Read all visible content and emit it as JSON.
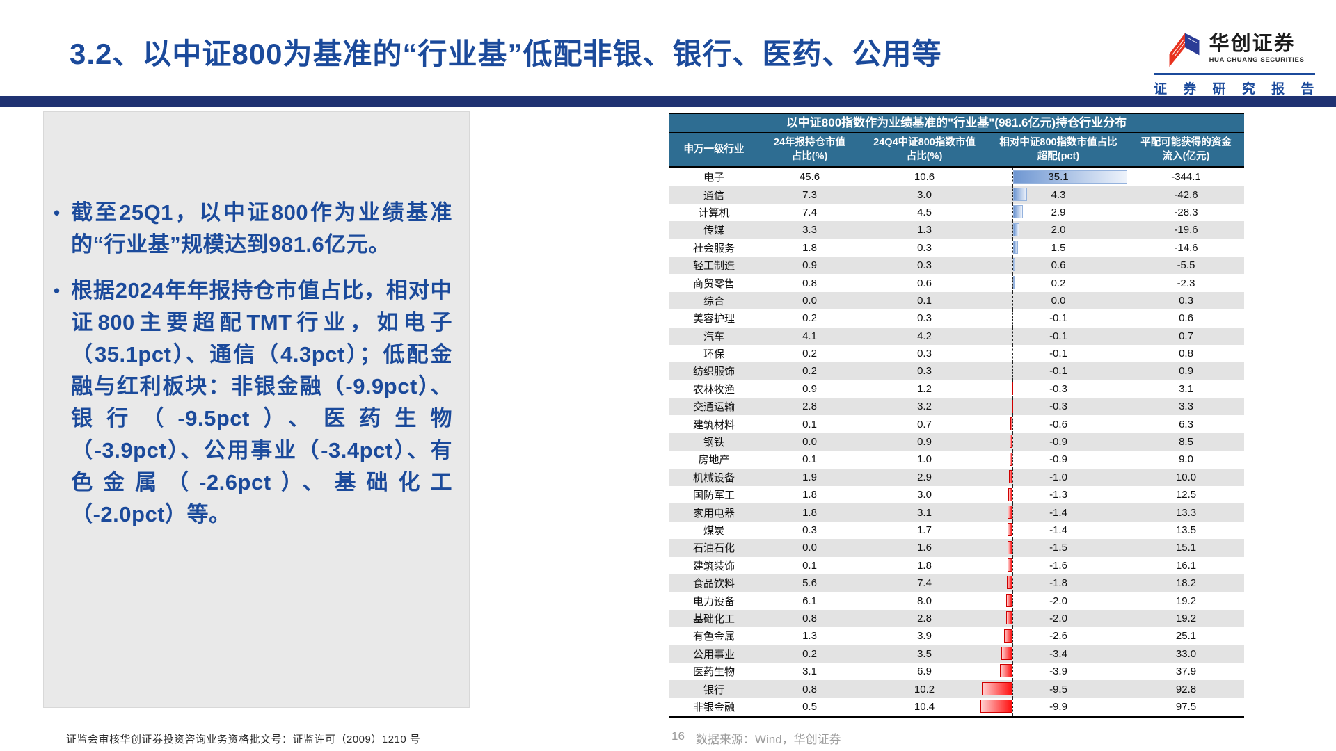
{
  "page": {
    "title": "3.2、以中证800为基准的“行业基”低配非银、银行、医药、公用等",
    "page_number": "16",
    "source_note": "数据来源：Wind，华创证券",
    "disclaimer": "证监会审核华创证券投资咨询业务资格批文号：证监许可（2009）1210 号"
  },
  "logo": {
    "name_cn": "华创证券",
    "name_en": "HUA CHUANG SECURITIES",
    "report_label": "证 券 研 究 报 告",
    "brand_red": "#e8321f",
    "brand_blue": "#2b3c96"
  },
  "notes": {
    "bullets": [
      "截至25Q1，以中证800作为业绩基准的“行业基”规模达到981.6亿元。",
      "根据2024年年报持仓市值占比，相对中证800主要超配TMT行业，如电子（35.1pct）、通信（4.3pct）；低配金融与红利板块：非银金融（-9.9pct）、银行（-9.5pct）、医药生物（-3.9pct）、公用事业（-3.4pct）、有色金属（-2.6pct）、基础化工（-2.0pct）等。"
    ]
  },
  "chart_data": {
    "type": "table",
    "title": "以中证800指数作为业绩基准的\"行业基\"(981.6亿元)持仓行业分布",
    "columns": [
      {
        "l1": "申万一级行业",
        "l2": ""
      },
      {
        "l1": "24年报持仓市值",
        "l2": "占比(%)"
      },
      {
        "l1": "24Q4中证800指数市值",
        "l2": "占比(%)"
      },
      {
        "l1": "相对中证800指数市值占比",
        "l2": "超配(pct)"
      },
      {
        "l1": "平配可能获得的资金",
        "l2": "流入(亿元)"
      }
    ],
    "bar_column_index": 3,
    "bar_axis": "dashed zero line, positive bars right (blue gradient), negative bars left (red gradient)",
    "bar_colors": {
      "positive": "#6f97d2",
      "negative": "#ff0000"
    },
    "header_bg": "#2e6d92",
    "stripe_bg": "#e3e3e3",
    "rows": [
      [
        "电子",
        "45.6",
        "10.6",
        "35.1",
        "-344.1"
      ],
      [
        "通信",
        "7.3",
        "3.0",
        "4.3",
        "-42.6"
      ],
      [
        "计算机",
        "7.4",
        "4.5",
        "2.9",
        "-28.3"
      ],
      [
        "传媒",
        "3.3",
        "1.3",
        "2.0",
        "-19.6"
      ],
      [
        "社会服务",
        "1.8",
        "0.3",
        "1.5",
        "-14.6"
      ],
      [
        "轻工制造",
        "0.9",
        "0.3",
        "0.6",
        "-5.5"
      ],
      [
        "商贸零售",
        "0.8",
        "0.6",
        "0.2",
        "-2.3"
      ],
      [
        "综合",
        "0.0",
        "0.1",
        "0.0",
        "0.3"
      ],
      [
        "美容护理",
        "0.2",
        "0.3",
        "-0.1",
        "0.6"
      ],
      [
        "汽车",
        "4.1",
        "4.2",
        "-0.1",
        "0.7"
      ],
      [
        "环保",
        "0.2",
        "0.3",
        "-0.1",
        "0.8"
      ],
      [
        "纺织服饰",
        "0.2",
        "0.3",
        "-0.1",
        "0.9"
      ],
      [
        "农林牧渔",
        "0.9",
        "1.2",
        "-0.3",
        "3.1"
      ],
      [
        "交通运输",
        "2.8",
        "3.2",
        "-0.3",
        "3.3"
      ],
      [
        "建筑材料",
        "0.1",
        "0.7",
        "-0.6",
        "6.3"
      ],
      [
        "钢铁",
        "0.0",
        "0.9",
        "-0.9",
        "8.5"
      ],
      [
        "房地产",
        "0.1",
        "1.0",
        "-0.9",
        "9.0"
      ],
      [
        "机械设备",
        "1.9",
        "2.9",
        "-1.0",
        "10.0"
      ],
      [
        "国防军工",
        "1.8",
        "3.0",
        "-1.3",
        "12.5"
      ],
      [
        "家用电器",
        "1.8",
        "3.1",
        "-1.4",
        "13.3"
      ],
      [
        "煤炭",
        "0.3",
        "1.7",
        "-1.4",
        "13.5"
      ],
      [
        "石油石化",
        "0.0",
        "1.6",
        "-1.5",
        "15.1"
      ],
      [
        "建筑装饰",
        "0.1",
        "1.8",
        "-1.6",
        "16.1"
      ],
      [
        "食品饮料",
        "5.6",
        "7.4",
        "-1.8",
        "18.2"
      ],
      [
        "电力设备",
        "6.1",
        "8.0",
        "-2.0",
        "19.2"
      ],
      [
        "基础化工",
        "0.8",
        "2.8",
        "-2.0",
        "19.2"
      ],
      [
        "有色金属",
        "1.3",
        "3.9",
        "-2.6",
        "25.1"
      ],
      [
        "公用事业",
        "0.2",
        "3.5",
        "-3.4",
        "33.0"
      ],
      [
        "医药生物",
        "3.1",
        "6.9",
        "-3.9",
        "37.9"
      ],
      [
        "银行",
        "0.8",
        "10.2",
        "-9.5",
        "92.8"
      ],
      [
        "非银金融",
        "0.5",
        "10.4",
        "-9.9",
        "97.5"
      ]
    ]
  }
}
